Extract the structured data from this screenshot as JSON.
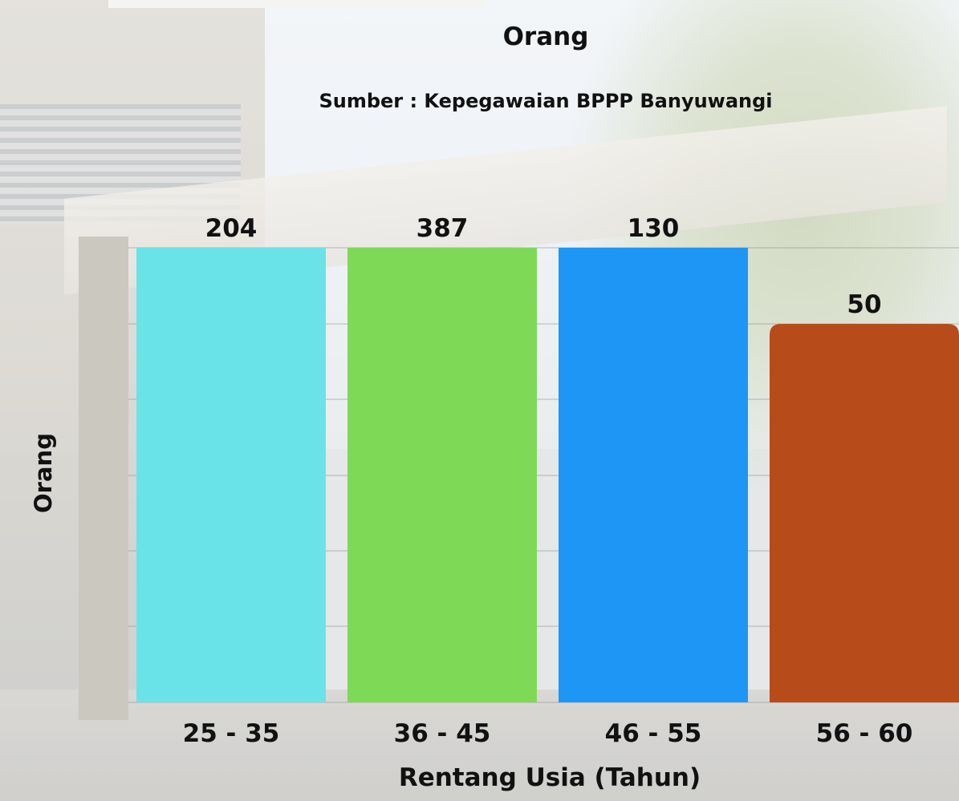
{
  "chart_data": {
    "type": "bar",
    "title": "Orang",
    "subtitle": "Sumber : Kepegawaian BPPP Banyuwangi",
    "xlabel": "Rentang Usia (Tahun)",
    "ylabel": "Orang",
    "categories": [
      "25 - 35",
      "36 - 45",
      "46 - 55",
      "56 - 60"
    ],
    "values": [
      204,
      387,
      130,
      50
    ],
    "value_labels": [
      "204",
      "387",
      "130",
      "50"
    ],
    "bar_colors": [
      "#6ae3e8",
      "#7ed957",
      "#1e96f5",
      "#b84b1a"
    ],
    "grid": true,
    "legend": "none"
  }
}
